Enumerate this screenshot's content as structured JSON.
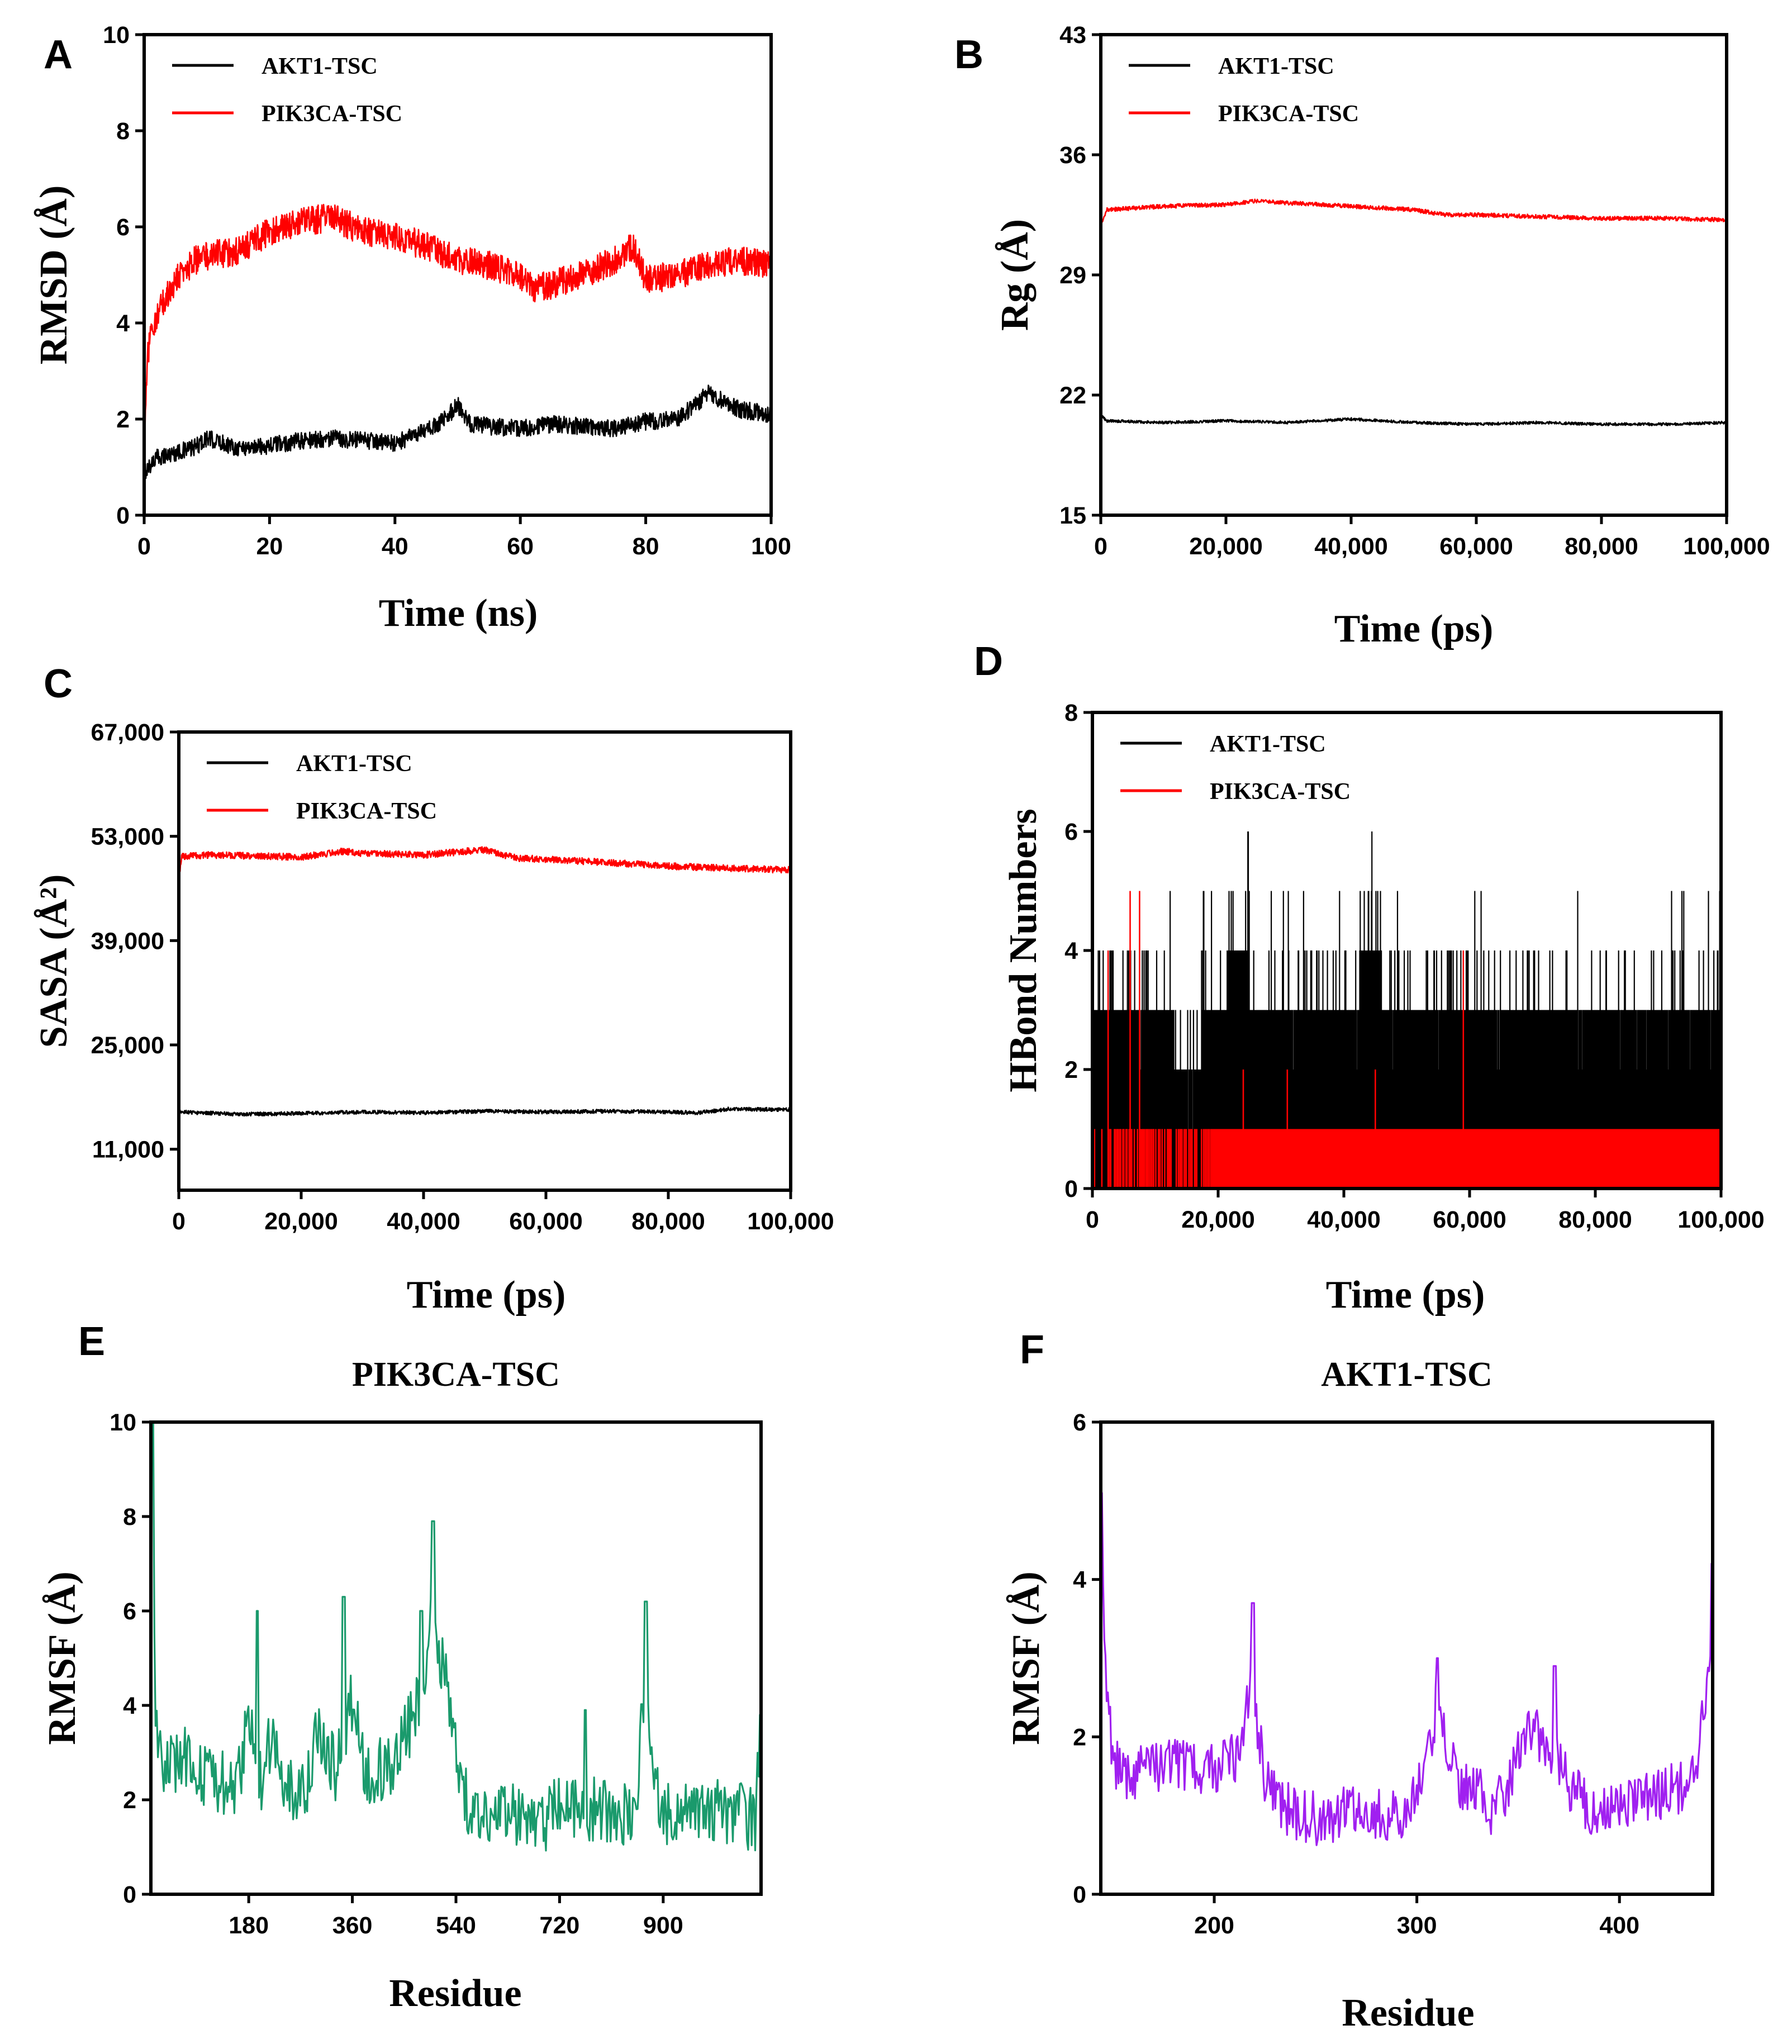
{
  "figure": {
    "panels": [
      "A",
      "B",
      "C",
      "D",
      "E",
      "F"
    ]
  },
  "chart_data": [
    {
      "panel": "A",
      "type": "line",
      "title": "",
      "xlabel": "Time (ns)",
      "ylabel": "RMSD (Å)",
      "xlim": [
        0,
        100
      ],
      "ylim": [
        0,
        10
      ],
      "xticks": [
        0,
        20,
        40,
        60,
        80,
        100
      ],
      "yticks": [
        0,
        2,
        4,
        6,
        8,
        10
      ],
      "xtick_labels": [
        "0",
        "20",
        "40",
        "60",
        "80",
        "100"
      ],
      "ytick_labels": [
        "0",
        "2",
        "4",
        "6",
        "8",
        "10"
      ],
      "legend": "top-left",
      "series": [
        {
          "name": "AKT1-TSC",
          "color": "#000000",
          "noise": 0.18,
          "x": [
            0,
            2,
            5,
            8,
            10,
            15,
            20,
            25,
            30,
            35,
            40,
            45,
            48,
            50,
            52,
            55,
            60,
            65,
            70,
            75,
            80,
            85,
            88,
            90,
            92,
            95,
            100
          ],
          "y": [
            0.9,
            1.2,
            1.3,
            1.4,
            1.6,
            1.4,
            1.45,
            1.55,
            1.6,
            1.55,
            1.5,
            1.75,
            2.0,
            2.3,
            1.9,
            1.85,
            1.8,
            1.9,
            1.85,
            1.8,
            1.95,
            2.0,
            2.3,
            2.55,
            2.4,
            2.2,
            2.1
          ]
        },
        {
          "name": "PIK3CA-TSC",
          "color": "#ff0000",
          "noise": 0.3,
          "x": [
            0,
            0.5,
            1,
            3,
            5,
            8,
            10,
            15,
            20,
            25,
            30,
            35,
            40,
            45,
            50,
            55,
            60,
            62,
            65,
            70,
            75,
            78,
            80,
            85,
            90,
            95,
            100
          ],
          "y": [
            1.0,
            3.2,
            3.8,
            4.4,
            4.9,
            5.3,
            5.4,
            5.5,
            5.9,
            6.1,
            6.2,
            5.9,
            5.8,
            5.6,
            5.3,
            5.2,
            5.0,
            4.7,
            4.8,
            5.0,
            5.3,
            5.6,
            4.9,
            5.0,
            5.2,
            5.3,
            5.2
          ]
        }
      ]
    },
    {
      "panel": "B",
      "type": "line",
      "title": "",
      "xlabel": "Time (ps)",
      "ylabel": "Rg (Å)",
      "xlim": [
        0,
        100000
      ],
      "ylim": [
        15,
        43
      ],
      "xticks": [
        0,
        20000,
        40000,
        60000,
        80000,
        100000
      ],
      "yticks": [
        15,
        22,
        29,
        36,
        43
      ],
      "xtick_labels": [
        "0",
        "20,000",
        "40,000",
        "60,000",
        "80,000",
        "100,000"
      ],
      "ytick_labels": [
        "15",
        "22",
        "29",
        "36",
        "43"
      ],
      "legend": "top-left",
      "series": [
        {
          "name": "AKT1-TSC",
          "color": "#000000",
          "noise": 0.08,
          "x": [
            0,
            1000,
            10000,
            20000,
            30000,
            40000,
            50000,
            60000,
            70000,
            80000,
            90000,
            100000
          ],
          "y": [
            20.8,
            20.5,
            20.4,
            20.5,
            20.4,
            20.6,
            20.4,
            20.3,
            20.4,
            20.3,
            20.3,
            20.4
          ]
        },
        {
          "name": "PIK3CA-TSC",
          "color": "#ff0000",
          "noise": 0.12,
          "x": [
            0,
            1000,
            10000,
            20000,
            25000,
            30000,
            40000,
            50000,
            55000,
            60000,
            70000,
            80000,
            90000,
            100000
          ],
          "y": [
            32.0,
            32.8,
            33.0,
            33.1,
            33.3,
            33.2,
            33.0,
            32.8,
            32.5,
            32.5,
            32.4,
            32.3,
            32.3,
            32.2
          ]
        }
      ]
    },
    {
      "panel": "C",
      "type": "line",
      "title": "",
      "xlabel": "Time (ps)",
      "ylabel": "SASA (Å²)",
      "xlim": [
        0,
        100000
      ],
      "ylim": [
        5500,
        67000
      ],
      "xticks": [
        0,
        20000,
        40000,
        60000,
        80000,
        100000
      ],
      "yticks": [
        11000,
        25000,
        39000,
        53000,
        67000
      ],
      "xtick_labels": [
        "0",
        "20,000",
        "40,000",
        "60,000",
        "80,000",
        "100,000"
      ],
      "ytick_labels": [
        "11,000",
        "25,000",
        "39,000",
        "53,000",
        "67,000"
      ],
      "legend": "top-left",
      "series": [
        {
          "name": "AKT1-TSC",
          "color": "#000000",
          "noise": 250,
          "x": [
            0,
            10000,
            20000,
            30000,
            40000,
            50000,
            60000,
            70000,
            80000,
            85000,
            90000,
            100000
          ],
          "y": [
            16000,
            15700,
            15800,
            16000,
            15900,
            16100,
            16000,
            16100,
            16000,
            15900,
            16400,
            16300
          ]
        },
        {
          "name": "PIK3CA-TSC",
          "color": "#ff0000",
          "noise": 450,
          "x": [
            0,
            500,
            5000,
            10000,
            20000,
            27000,
            30000,
            40000,
            50000,
            55000,
            60000,
            70000,
            80000,
            90000,
            100000
          ],
          "y": [
            47500,
            50300,
            50500,
            50400,
            50200,
            51000,
            50700,
            50500,
            51200,
            50100,
            49900,
            49500,
            49000,
            48700,
            48500
          ]
        }
      ]
    },
    {
      "panel": "D",
      "type": "line",
      "title": "",
      "xlabel": "Time (ps)",
      "ylabel": "HBond Numbers",
      "xlim": [
        0,
        100000
      ],
      "ylim": [
        0,
        8
      ],
      "xticks": [
        0,
        20000,
        40000,
        60000,
        80000,
        100000
      ],
      "yticks": [
        0,
        2,
        4,
        6,
        8
      ],
      "xtick_labels": [
        "0",
        "20,000",
        "40,000",
        "60,000",
        "80,000",
        "100,000"
      ],
      "ytick_labels": [
        "0",
        "2",
        "4",
        "6",
        "8"
      ],
      "legend": "top-left",
      "series": [
        {
          "name": "AKT1-TSC",
          "color": "#000000",
          "kind": "discrete",
          "x": [
            0,
            10000,
            16000,
            19000,
            24000,
            26000,
            40000,
            45000,
            47000,
            50000,
            56000,
            60000,
            80000,
            100000
          ],
          "base_low": [
            0,
            0,
            0,
            0,
            0,
            1,
            1,
            1,
            1,
            1,
            1,
            1,
            1,
            1
          ],
          "base_high": [
            3,
            3,
            2,
            3,
            4,
            3,
            3,
            4,
            3,
            3,
            3,
            3,
            3,
            3
          ],
          "max_spike": [
            5,
            5,
            4,
            5,
            6,
            5,
            5,
            6,
            5,
            5,
            4,
            5,
            5,
            5
          ]
        },
        {
          "name": "PIK3CA-TSC",
          "color": "#ff0000",
          "kind": "discrete",
          "x": [
            0,
            5000,
            8000,
            19000,
            26000,
            100000
          ],
          "band": [
            [
              0,
              1
            ],
            [
              0,
              1
            ],
            [
              0,
              1
            ],
            [
              0,
              1
            ],
            [
              0,
              1
            ],
            [
              0,
              1
            ]
          ],
          "sparse_before": 19000,
          "spikes": [
            [
              6000,
              5
            ],
            [
              7500,
              5
            ],
            [
              2500,
              4
            ],
            [
              59000,
              4
            ],
            [
              24000,
              2
            ],
            [
              45000,
              2
            ],
            [
              31000,
              2
            ]
          ]
        }
      ]
    },
    {
      "panel": "E",
      "type": "line",
      "title": "PIK3CA-TSC",
      "xlabel": "Residue",
      "ylabel": "RMSF (Å)",
      "xlim": [
        10,
        1070
      ],
      "ylim": [
        0,
        10
      ],
      "xticks": [
        180,
        360,
        540,
        720,
        900
      ],
      "yticks": [
        0,
        2,
        4,
        6,
        8,
        10
      ],
      "xtick_labels": [
        "180",
        "360",
        "540",
        "720",
        "900"
      ],
      "ytick_labels": [
        "0",
        "2",
        "4",
        "6",
        "8",
        "10"
      ],
      "series": [
        {
          "name": "PIK3CA-TSC",
          "color": "#1a9a6c",
          "noise": 0.7,
          "x": [
            10,
            12,
            18,
            25,
            40,
            60,
            80,
            100,
            130,
            160,
            180,
            200,
            220,
            250,
            280,
            300,
            330,
            360,
            380,
            400,
            430,
            460,
            480,
            500,
            520,
            540,
            560,
            600,
            650,
            700,
            720,
            750,
            800,
            850,
            870,
            880,
            900,
            940,
            980,
            1020,
            1060,
            1070
          ],
          "y": [
            7.5,
            10.0,
            3.8,
            2.8,
            2.6,
            3.0,
            2.8,
            2.6,
            2.4,
            2.2,
            3.8,
            2.4,
            3.3,
            2.2,
            2.2,
            3.4,
            2.6,
            4.2,
            2.6,
            2.6,
            2.8,
            3.6,
            4.4,
            6.0,
            4.6,
            3.0,
            1.9,
            1.8,
            1.7,
            1.6,
            1.9,
            1.9,
            1.7,
            1.6,
            4.6,
            2.8,
            1.6,
            1.8,
            1.8,
            1.7,
            1.6,
            3.6
          ]
        }
      ],
      "peaks": [
        [
          12,
          10.0
        ],
        [
          195,
          6.0
        ],
        [
          345,
          6.3
        ],
        [
          480,
          6.0
        ],
        [
          500,
          7.9
        ],
        [
          870,
          6.2
        ],
        [
          765,
          3.9
        ],
        [
          1070,
          3.8
        ]
      ]
    },
    {
      "panel": "F",
      "type": "line",
      "title": "AKT1-TSC",
      "xlabel": "Residue",
      "ylabel": "RMSF (Å)",
      "xlim": [
        144,
        446
      ],
      "ylim": [
        0,
        6
      ],
      "xticks": [
        200,
        300,
        400
      ],
      "yticks": [
        0,
        2,
        4,
        6
      ],
      "xtick_labels": [
        "200",
        "300",
        "400"
      ],
      "ytick_labels": [
        "0",
        "2",
        "4",
        "6"
      ],
      "series": [
        {
          "name": "AKT1-TSC",
          "color": "#a020f0",
          "noise": 0.35,
          "x": [
            144,
            146,
            150,
            160,
            170,
            180,
            190,
            200,
            210,
            218,
            225,
            235,
            245,
            255,
            265,
            275,
            285,
            295,
            305,
            310,
            320,
            330,
            335,
            345,
            355,
            365,
            375,
            385,
            395,
            405,
            415,
            425,
            435,
            440,
            444,
            446
          ],
          "y": [
            5.0,
            3.0,
            1.7,
            1.5,
            1.6,
            1.7,
            1.6,
            1.6,
            1.7,
            2.6,
            1.5,
            1.1,
            1.0,
            0.9,
            1.1,
            1.1,
            1.0,
            1.0,
            1.8,
            2.4,
            1.4,
            1.4,
            1.0,
            1.4,
            2.2,
            1.8,
            1.4,
            1.1,
            1.1,
            1.2,
            1.2,
            1.3,
            1.4,
            2.0,
            2.6,
            4.2
          ]
        }
      ],
      "peaks": [
        [
          144,
          5.1
        ],
        [
          219,
          3.7
        ],
        [
          310,
          3.0
        ],
        [
          368,
          2.9
        ],
        [
          446,
          4.2
        ]
      ]
    }
  ]
}
